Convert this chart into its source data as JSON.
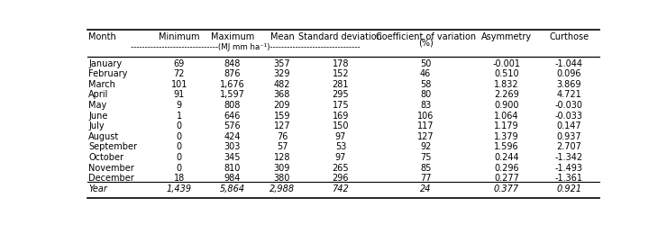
{
  "columns": [
    "Month",
    "Minimum",
    "Maximum",
    "Mean",
    "Standard deviation",
    "Coefficient of variation",
    "Asymmetry",
    "Curthose"
  ],
  "subheader": "-------------------------------(MJ mm ha⁻¹)--------------------------------",
  "cv_pct": "(%)",
  "rows": [
    [
      "January",
      "69",
      "848",
      "357",
      "178",
      "50",
      "-0.001",
      "-1.044"
    ],
    [
      "February",
      "72",
      "876",
      "329",
      "152",
      "46",
      "0.510",
      "0.096"
    ],
    [
      "March",
      "101",
      "1,676",
      "482",
      "281",
      "58",
      "1.832",
      "3.869"
    ],
    [
      "April",
      "91",
      "1,597",
      "368",
      "295",
      "80",
      "2.269",
      "4.721"
    ],
    [
      "May",
      "9",
      "808",
      "209",
      "175",
      "83",
      "0.900",
      "-0.030"
    ],
    [
      "June",
      "1",
      "646",
      "159",
      "169",
      "106",
      "1.064",
      "-0.033"
    ],
    [
      "July",
      "0",
      "576",
      "127",
      "150",
      "117",
      "1.179",
      "0.147"
    ],
    [
      "August",
      "0",
      "424",
      "76",
      "97",
      "127",
      "1.379",
      "0.937"
    ],
    [
      "September",
      "0",
      "303",
      "57",
      "53",
      "92",
      "1.596",
      "2.707"
    ],
    [
      "October",
      "0",
      "345",
      "128",
      "97",
      "75",
      "0.244",
      "-1.342"
    ],
    [
      "November",
      "0",
      "810",
      "309",
      "265",
      "85",
      "0.296",
      "-1.493"
    ],
    [
      "December",
      "18",
      "984",
      "380",
      "296",
      "77",
      "0.277",
      "-1.361"
    ],
    [
      "Year",
      "1,439",
      "5,864",
      "2,988",
      "742",
      "24",
      "0.377",
      "0.921"
    ]
  ],
  "font_size": 7.0,
  "bg_color": "#ffffff",
  "text_color": "#000000",
  "col_props": [
    0.108,
    0.082,
    0.09,
    0.072,
    0.118,
    0.158,
    0.105,
    0.098
  ]
}
